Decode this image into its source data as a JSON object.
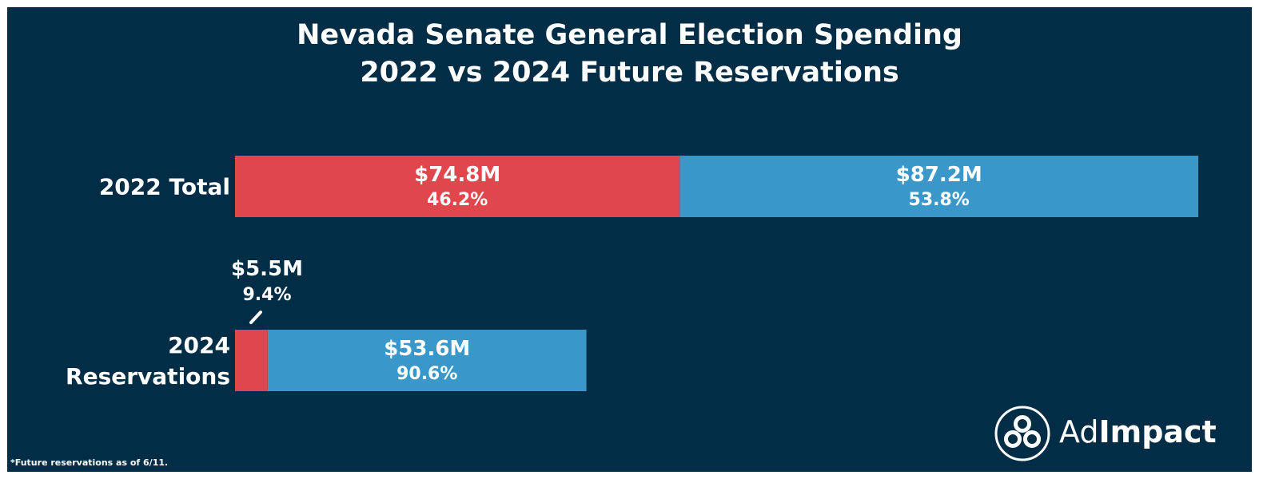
{
  "chart_data": {
    "type": "bar",
    "orientation": "horizontal",
    "stacked": true,
    "title": [
      "Nevada Senate General Election Spending",
      "2022 vs 2024 Future Reservations"
    ],
    "categories": [
      [
        "2022 Total"
      ],
      [
        "2024",
        "Reservations"
      ]
    ],
    "series": [
      {
        "color": "#e0474c",
        "values": [
          74.8,
          5.5
        ],
        "value_labels": [
          "$74.8M",
          "$5.5M"
        ],
        "percent_labels": [
          "46.2%",
          "9.4%"
        ]
      },
      {
        "color": "#3a97c9",
        "values": [
          87.2,
          53.6
        ],
        "value_labels": [
          "$87.2M",
          "$53.6M"
        ],
        "percent_labels": [
          "53.8%",
          "90.6%"
        ]
      }
    ],
    "xlim": [
      0,
      162
    ],
    "grid": false,
    "legend": "none"
  },
  "colors": {
    "background": "#012d46",
    "text": "#ffffff"
  },
  "footnote": "*Future reservations as of 6/11.",
  "logo": {
    "icon": "adimpact-circles-icon",
    "text_regular": "Ad",
    "text_bold": "Impact"
  }
}
